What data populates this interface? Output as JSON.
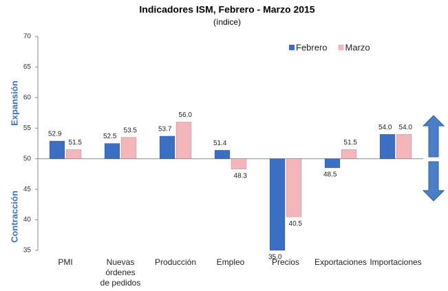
{
  "chart_data": {
    "type": "bar",
    "title": "Indicadores ISM, Febrero - Marzo 2015",
    "subtitle": "(índice)",
    "annotations": [
      "Expansión",
      "Contracción"
    ],
    "categories": [
      "PMI",
      "Nuevas órdenes de pedidos",
      "Producción",
      "Empleo",
      "Precios",
      "Exportaciones",
      "Importaciones"
    ],
    "series": [
      {
        "name": "Febrero",
        "color": "#3a6fc4",
        "values": [
          52.9,
          52.5,
          53.7,
          51.4,
          35,
          48.5,
          54
        ],
        "value_labels": [
          "52.9",
          "52.5",
          "53.7",
          "51.4",
          "35.0",
          "48.5",
          "54.0"
        ]
      },
      {
        "name": "Marzo",
        "color": "#f2b6bb",
        "values": [
          51.5,
          53.5,
          56,
          48.3,
          40.5,
          51.5,
          54
        ],
        "value_labels": [
          "51.5",
          "53.5",
          "56.0",
          "48.3",
          "40.5",
          "51.5",
          "54.0"
        ]
      }
    ],
    "baseline": 50,
    "ylim": [
      35,
      70
    ],
    "yticks": [
      35,
      40,
      45,
      50,
      55,
      60,
      65,
      70
    ],
    "grid": false,
    "legend": "top-right"
  }
}
